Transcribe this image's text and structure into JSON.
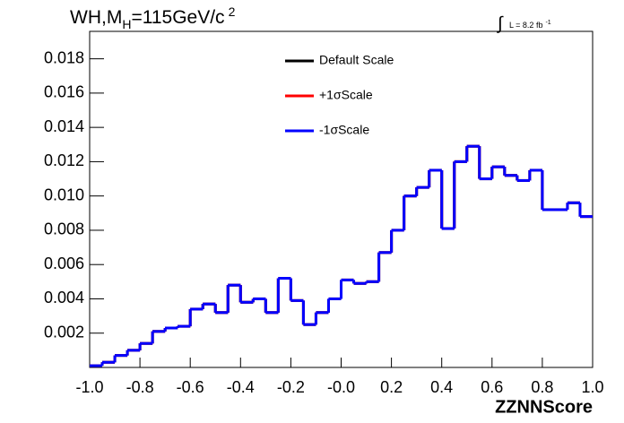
{
  "chart_data": {
    "type": "histogram",
    "title_parts": [
      "WH,M",
      "H",
      "=115GeV/c",
      "2"
    ],
    "annotation": {
      "integral": "∫",
      "text": "L = 8.2 fb",
      "exponent": "-1"
    },
    "x_label": "ZZNNScore",
    "bins": [
      -1,
      -0.95,
      -0.9,
      -0.85,
      -0.8,
      -0.75,
      -0.7,
      -0.65,
      -0.6,
      -0.55,
      -0.5,
      -0.45,
      -0.4,
      -0.35,
      -0.3,
      -0.25,
      -0.2,
      -0.15,
      -0.1,
      -0.05,
      0,
      0.05,
      0.1,
      0.15,
      0.2,
      0.25,
      0.3,
      0.35,
      0.4,
      0.45,
      0.5,
      0.55,
      0.6,
      0.65,
      0.7,
      0.75,
      0.8,
      0.85,
      0.9,
      0.95,
      1
    ],
    "series": [
      {
        "name": "Default Scale",
        "color": "#000000",
        "values": [
          0.0001,
          0.0003,
          0.0007,
          0.001,
          0.0014,
          0.0021,
          0.0023,
          0.0024,
          0.0034,
          0.0037,
          0.0032,
          0.0048,
          0.0038,
          0.004,
          0.0032,
          0.0052,
          0.0039,
          0.0025,
          0.0032,
          0.004,
          0.0051,
          0.0049,
          0.005,
          0.0067,
          0.008,
          0.01,
          0.0105,
          0.0115,
          0.0081,
          0.012,
          0.0129,
          0.011,
          0.0117,
          0.0112,
          0.0109,
          0.0115,
          0.0092,
          0.0092,
          0.0096,
          0.0088
        ]
      },
      {
        "name": "+1σScale",
        "color": "#ff0000",
        "values": [
          0.0001,
          0.0003,
          0.0007,
          0.001,
          0.0014,
          0.0021,
          0.0023,
          0.0024,
          0.0034,
          0.0037,
          0.0032,
          0.0048,
          0.0038,
          0.004,
          0.0032,
          0.0052,
          0.0039,
          0.0025,
          0.0032,
          0.004,
          0.0051,
          0.0049,
          0.005,
          0.0067,
          0.008,
          0.01,
          0.0105,
          0.0115,
          0.0081,
          0.012,
          0.0129,
          0.011,
          0.0117,
          0.0112,
          0.0109,
          0.0115,
          0.0092,
          0.0092,
          0.0096,
          0.0088
        ]
      },
      {
        "name": "-1σScale",
        "color": "#0000ff",
        "values": [
          0.0001,
          0.0003,
          0.0007,
          0.001,
          0.0014,
          0.0021,
          0.0023,
          0.0024,
          0.0034,
          0.0037,
          0.0032,
          0.0048,
          0.0038,
          0.004,
          0.0032,
          0.0052,
          0.0039,
          0.0025,
          0.0032,
          0.004,
          0.0051,
          0.0049,
          0.005,
          0.0067,
          0.008,
          0.01,
          0.0105,
          0.0115,
          0.0081,
          0.012,
          0.0129,
          0.011,
          0.0117,
          0.0112,
          0.0109,
          0.0115,
          0.0092,
          0.0092,
          0.0096,
          0.0088
        ]
      }
    ],
    "xlim": [
      -1,
      1
    ],
    "ylim": [
      0,
      0.0196
    ],
    "xticks": [
      {
        "value": -1,
        "label": "-1.0"
      },
      -0.8,
      -0.6,
      -0.4,
      -0.2,
      {
        "value": 0,
        "label": "-0.0"
      },
      0.2,
      0.4,
      0.6,
      0.8,
      {
        "value": 1,
        "label": "1.0"
      }
    ],
    "yticks": [
      0.002,
      0.004,
      0.006,
      0.008,
      {
        "value": 0.01,
        "label": "0.010"
      },
      0.012,
      0.014,
      0.016,
      0.018
    ]
  }
}
